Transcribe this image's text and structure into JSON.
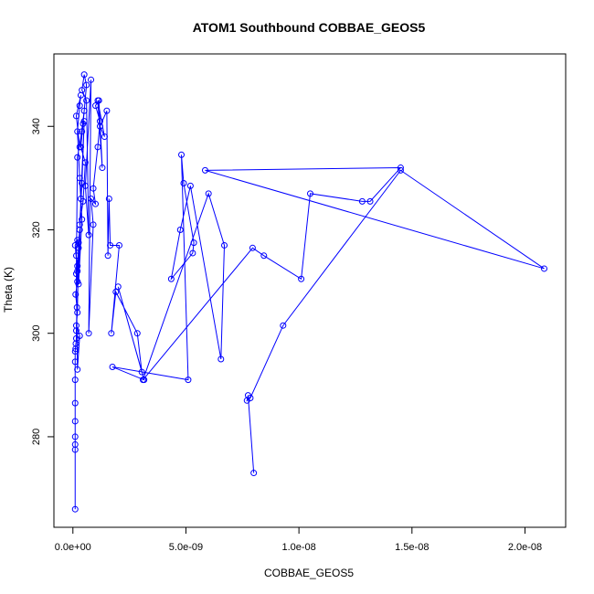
{
  "chart_data": {
    "type": "line",
    "title": "ATOM1 Southbound COBBAE_GEOS5",
    "xlabel": "COBBAE_GEOS5",
    "ylabel": "Theta (K)",
    "xlim": [
      -8.4e-10,
      2.18e-08
    ],
    "ylim": [
      262.5,
      354.0
    ],
    "x_ticks": [
      0,
      5e-09,
      1e-08,
      1.5e-08,
      2e-08
    ],
    "x_tick_labels": [
      "0.0e+00",
      "5.0e-09",
      "1.0e-08",
      "1.5e-08",
      "2.0e-08"
    ],
    "y_ticks": [
      280,
      300,
      320,
      340
    ],
    "y_tick_labels": [
      "280",
      "300",
      "320",
      "340"
    ],
    "grid": false,
    "line_color": "#0000ff",
    "marker": "open-circle",
    "series": [
      {
        "x": [
          1e-10,
          1e-10,
          1e-10,
          1e-10,
          1e-10,
          1e-10,
          1e-10,
          1e-10,
          1e-10,
          1.3e-10,
          1.2e-10,
          1.5e-10,
          1.5e-10,
          1.8e-10,
          1.2e-10,
          2e-10,
          1.5e-10,
          2e-10,
          2.5e-10,
          2e-10,
          1e-10,
          2e-10,
          3e-10,
          2.5e-10,
          2e-10,
          1.5e-10,
          3e-10,
          2e-10,
          1.5e-10,
          2e-10,
          4e-10,
          5e-10,
          3e-10,
          1.5e-10,
          3.5e-10,
          3e-10,
          2e-10,
          3e-10,
          4e-10,
          2.5e-10,
          3.5e-10,
          5e-10,
          4e-10,
          3e-10,
          4.5e-10,
          5.5e-10,
          3.5e-10,
          4.5e-10,
          6e-10,
          5e-10,
          4e-10,
          6e-10,
          7e-10,
          5.5e-10,
          8e-10,
          7e-10,
          9e-10,
          8e-10,
          1e-09,
          9e-10,
          1.1e-09,
          1.2e-09,
          1e-09,
          1.15e-09,
          1.3e-09,
          1.1e-09,
          1.4e-09,
          1.2e-09,
          1.5e-09,
          1.55e-09,
          1.6e-09,
          1.65e-09,
          2.05e-09,
          1.7e-09,
          1.9e-09,
          2.85e-09,
          3.05e-09,
          2e-09,
          3.15e-09,
          1.75e-09,
          5.1e-09,
          4.8e-09,
          4.9e-09,
          5.35e-09,
          5.3e-09,
          4.35e-09,
          4.75e-09,
          5.2e-09,
          6.55e-09,
          6.7e-09,
          6e-09,
          3.1e-09,
          7.95e-09,
          8.45e-09,
          1.01e-08,
          1.05e-08,
          1.28e-08,
          1.315e-08,
          1.45e-08,
          5.85e-09,
          2.085e-08,
          1.45e-08,
          9.3e-09,
          7.85e-09,
          7.7e-09,
          7.75e-09,
          8e-09
        ],
        "y": [
          266,
          277.5,
          278.5,
          280,
          283,
          286.5,
          291,
          294.5,
          296.5,
          298,
          297,
          299,
          300.5,
          305,
          307.5,
          310,
          315,
          313,
          316.5,
          318,
          317,
          312,
          320,
          317.5,
          304,
          301.5,
          299.5,
          293,
          311.5,
          334,
          339,
          343,
          336,
          342,
          346,
          344,
          339,
          330,
          322,
          309.5,
          326,
          341,
          329,
          321,
          325.5,
          333,
          336,
          340.5,
          348,
          350,
          347,
          345,
          319,
          328.5,
          349,
          300,
          321,
          326,
          325,
          328,
          336,
          341,
          344,
          345,
          332,
          345,
          338,
          340,
          343,
          315,
          326,
          317,
          317,
          300,
          308,
          300,
          292.5,
          309,
          291,
          293.5,
          291,
          334.5,
          329,
          317.5,
          315.5,
          310.5,
          320,
          328.5,
          295,
          317,
          327,
          291,
          316.5,
          315,
          310.5,
          327,
          325.5,
          325.5,
          332,
          331.5,
          312.5,
          331.5,
          301.5,
          287.5,
          287,
          288,
          273
        ]
      }
    ]
  }
}
